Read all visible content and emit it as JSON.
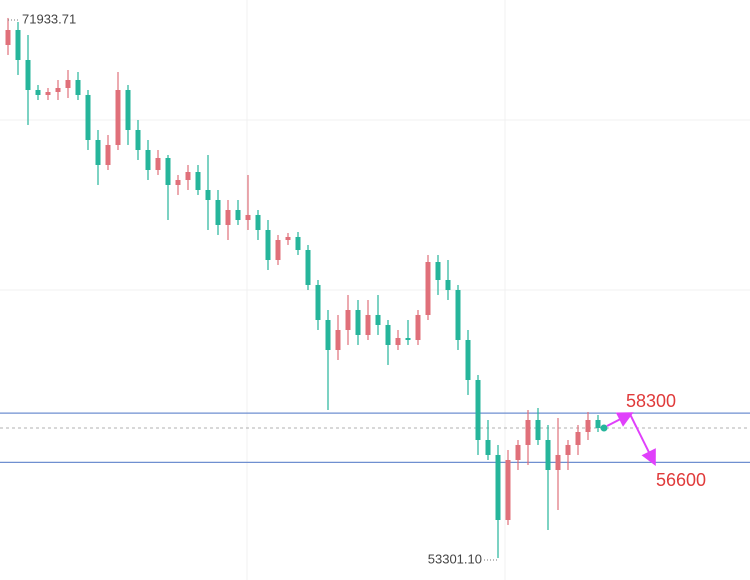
{
  "chart_data": {
    "type": "candlestick",
    "ylim": [
      52543,
      72553
    ],
    "colors": {
      "up": "#e0707a",
      "down": "#26b59b",
      "level": "#6f8fd0",
      "level_label": "#e03a3a",
      "arrow": "#e040fb",
      "last": "#26b59b"
    },
    "open": [
      71001,
      71518,
      70483,
      69448,
      69276,
      69379,
      69517,
      69793,
      69276,
      67723,
      66861,
      67551,
      69448,
      68068,
      67378,
      66688,
      67102,
      66171,
      66343,
      66619,
      65998,
      65653,
      64791,
      65308,
      64963,
      65136,
      64618,
      63583,
      64273,
      64377,
      63928,
      62721,
      61513,
      60478,
      61168,
      61858,
      60996,
      61686,
      61341,
      60651,
      60892,
      60823,
      61686,
      63514,
      62893,
      62548,
      60823,
      59443,
      57373,
      56856,
      54613,
      56683,
      57201,
      58063,
      57373,
      56338,
      56856,
      57201,
      57649,
      58063
    ],
    "high": [
      71933.71,
      71794,
      71346,
      69621,
      69517,
      69793,
      70138,
      70069,
      69448,
      68068,
      67896,
      70069,
      69621,
      68413,
      67723,
      67378,
      67206,
      66516,
      66861,
      66861,
      67206,
      65998,
      65653,
      65653,
      66516,
      65308,
      64963,
      64446,
      64515,
      64549,
      64101,
      62893,
      61858,
      61686,
      62376,
      62203,
      62203,
      62376,
      61513,
      61168,
      61513,
      61858,
      63756,
      63756,
      63583,
      62721,
      61168,
      59616,
      58063,
      57201,
      57028,
      57373,
      58408,
      58477,
      57891,
      58132,
      57373,
      57891,
      58339,
      58236
    ],
    "low": [
      70656,
      69966,
      68241,
      69103,
      69103,
      69103,
      69172,
      69103,
      67378,
      66171,
      66688,
      67378,
      67551,
      67033,
      66343,
      66516,
      64963,
      65826,
      65998,
      65826,
      64618,
      64446,
      64273,
      64791,
      64618,
      64273,
      63238,
      63411,
      64101,
      63756,
      62548,
      61168,
      58408,
      60133,
      60651,
      60651,
      60823,
      60996,
      59961,
      60478,
      60651,
      60651,
      61513,
      62376,
      62203,
      60478,
      58926,
      56856,
      56683,
      53301.1,
      54441,
      56338,
      56511,
      57201,
      54268,
      54958,
      56338,
      56856,
      57373,
      57649
    ],
    "close": [
      71518,
      70483,
      69448,
      69276,
      69379,
      69517,
      69793,
      69276,
      67723,
      66861,
      67551,
      69448,
      68068,
      67378,
      66688,
      67102,
      66171,
      66343,
      66619,
      65998,
      65653,
      64791,
      65308,
      64963,
      65136,
      64618,
      63583,
      64273,
      64377,
      63928,
      62721,
      61513,
      60478,
      61168,
      61858,
      60996,
      61686,
      61341,
      60651,
      60892,
      60823,
      61686,
      63514,
      62893,
      62548,
      60823,
      59443,
      57373,
      56856,
      54613,
      56683,
      57201,
      58063,
      57373,
      56338,
      56856,
      57201,
      57649,
      58063,
      57787
    ],
    "annotations": [
      {
        "value": 71933.71,
        "label": "71933.71"
      },
      {
        "value": 53301.1,
        "label": "53301.10"
      }
    ],
    "levels": [
      58300,
      56600
    ]
  }
}
